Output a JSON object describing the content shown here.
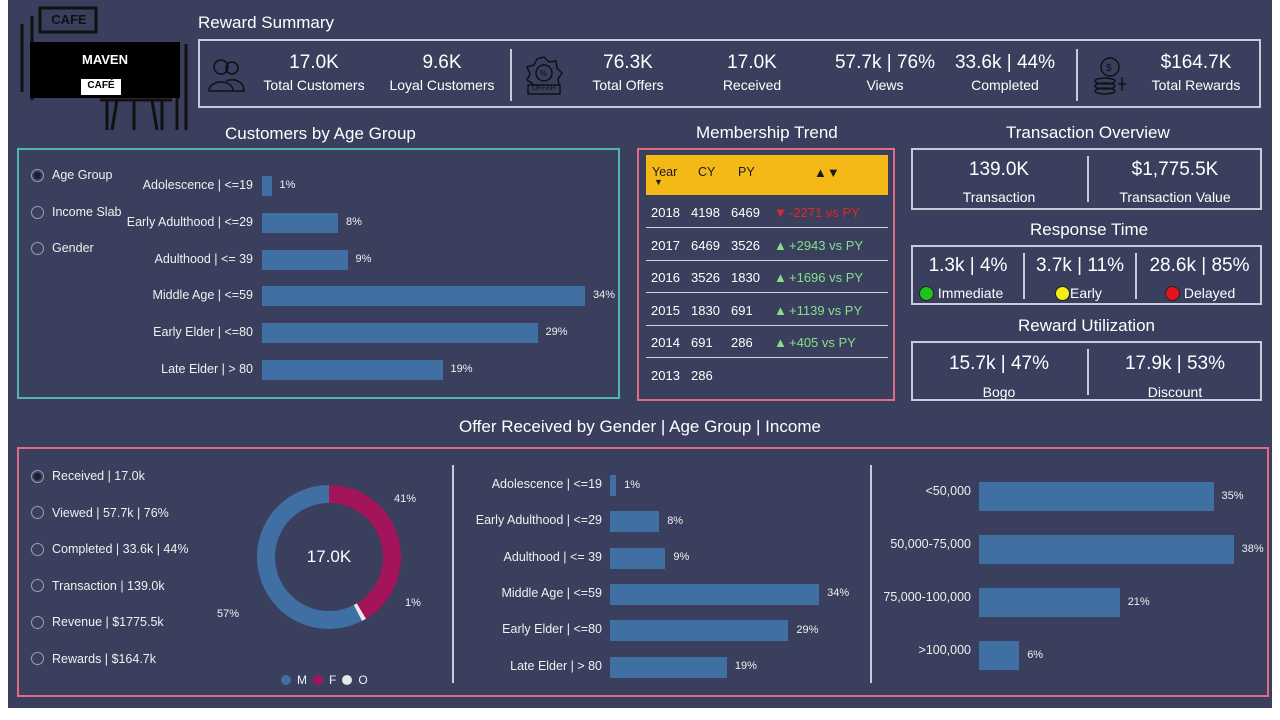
{
  "logo": {
    "top_text": "CAFE",
    "name": "MAVEN",
    "sub": "CAFÉ"
  },
  "summary": {
    "title": "Reward Summary",
    "kpis": [
      {
        "value": "17.0K",
        "label": "Total Customers"
      },
      {
        "value": "9.6K",
        "label": "Loyal Customers"
      },
      {
        "value": "76.3K",
        "label": "Total Offers"
      },
      {
        "value": "17.0K",
        "label": "Received"
      },
      {
        "value": "57.7k | 76%",
        "label": "Views"
      },
      {
        "value": "33.6k | 44%",
        "label": "Completed"
      },
      {
        "value": "$164.7K",
        "label": "Total Rewards"
      }
    ],
    "icons": [
      "customers-icon",
      "offer-badge-icon",
      "rewards-coins-icon"
    ],
    "offer_badge_text": "OFFER"
  },
  "age_panel": {
    "title": "Customers by Age Group",
    "radios": [
      {
        "label": "Age Group",
        "selected": true
      },
      {
        "label": "Income Slab",
        "selected": false
      },
      {
        "label": "Gender",
        "selected": false
      }
    ]
  },
  "membership": {
    "title": "Membership Trend",
    "headers": [
      "Year",
      "CY",
      "PY",
      "▲▼"
    ],
    "rows": [
      {
        "year": "2018",
        "cy": "4198",
        "py": "6469",
        "arrow": "▼",
        "delta": "-2271 vs PY",
        "trend": "neg"
      },
      {
        "year": "2017",
        "cy": "6469",
        "py": "3526",
        "arrow": "▲",
        "delta": "+2943 vs PY",
        "trend": "pos"
      },
      {
        "year": "2016",
        "cy": "3526",
        "py": "1830",
        "arrow": "▲",
        "delta": "+1696 vs PY",
        "trend": "pos"
      },
      {
        "year": "2015",
        "cy": "1830",
        "py": "691",
        "arrow": "▲",
        "delta": "+1139 vs PY",
        "trend": "pos"
      },
      {
        "year": "2014",
        "cy": "691",
        "py": "286",
        "arrow": "▲",
        "delta": "+405 vs PY",
        "trend": "pos"
      },
      {
        "year": "2013",
        "cy": "286",
        "py": "",
        "arrow": "",
        "delta": "",
        "trend": ""
      }
    ]
  },
  "transaction": {
    "title": "Transaction Overview",
    "count": "139.0K",
    "count_label": "Transaction",
    "value": "$1,775.5K",
    "value_label": "Transaction Value"
  },
  "response": {
    "title": "Response Time",
    "items": [
      {
        "value": "1.3k | 4%",
        "label": "Immediate",
        "color": "#1fc21f"
      },
      {
        "value": "3.7k | 11%",
        "label": "Early",
        "color": "#f5ee14"
      },
      {
        "value": "28.6k | 85%",
        "label": "Delayed",
        "color": "#e3141c"
      }
    ]
  },
  "reward_util": {
    "title": "Reward Utilization",
    "bogo": "15.7k | 47%",
    "bogo_label": "Bogo",
    "discount": "17.9k | 53%",
    "discount_label": "Discount"
  },
  "offer": {
    "title": "Offer Received by Gender | Age Group | Income",
    "radios": [
      {
        "label": "Received | 17.0k",
        "selected": true
      },
      {
        "label": "Viewed | 57.7k | 76%",
        "selected": false
      },
      {
        "label": "Completed | 33.6k | 44%",
        "selected": false
      },
      {
        "label": "Transaction | 139.0k",
        "selected": false
      },
      {
        "label": "Revenue | $1775.5k",
        "selected": false
      },
      {
        "label": "Rewards | $164.7k",
        "selected": false
      }
    ],
    "donut_center": "17.0K",
    "legend": [
      {
        "label": "M",
        "color": "#3f6fa3"
      },
      {
        "label": "F",
        "color": "#a3145a"
      },
      {
        "label": "O",
        "color": "#e8e8e8"
      }
    ]
  },
  "colors": {
    "background": "#3a3f5e",
    "bar": "#3f6fa3",
    "accent_header": "#f4b916",
    "panel_border_teal": "#4fb6b1",
    "panel_border_pink": "#e16b87"
  },
  "chart_data": [
    {
      "type": "bar",
      "title": "Customers by Age Group",
      "categories": [
        "Adolescence | <=19",
        "Early Adulthood | <=29",
        "Adulthood | <= 39",
        "Middle Age | <=59",
        "Early Elder | <=80",
        "Late Elder | > 80"
      ],
      "values": [
        1,
        8,
        9,
        34,
        29,
        19
      ],
      "value_labels": [
        "1%",
        "8%",
        "9%",
        "34%",
        "29%",
        "19%"
      ]
    },
    {
      "type": "pie",
      "title": "Offer Received by Gender",
      "categories": [
        "M",
        "F",
        "O"
      ],
      "values": [
        57,
        41,
        1
      ],
      "value_labels": [
        "57%",
        "41%",
        "1%"
      ]
    },
    {
      "type": "bar",
      "title": "Offer Received by Age Group",
      "categories": [
        "Adolescence | <=19",
        "Early Adulthood | <=29",
        "Adulthood | <= 39",
        "Middle Age | <=59",
        "Early Elder | <=80",
        "Late Elder | > 80"
      ],
      "values": [
        1,
        8,
        9,
        34,
        29,
        19
      ],
      "value_labels": [
        "1%",
        "8%",
        "9%",
        "34%",
        "29%",
        "19%"
      ]
    },
    {
      "type": "bar",
      "title": "Offer Received by Income",
      "categories": [
        "<50,000",
        "50,000-75,000",
        "75,000-100,000",
        ">100,000"
      ],
      "values": [
        35,
        38,
        21,
        6
      ],
      "value_labels": [
        "35%",
        "38%",
        "21%",
        "6%"
      ]
    }
  ]
}
